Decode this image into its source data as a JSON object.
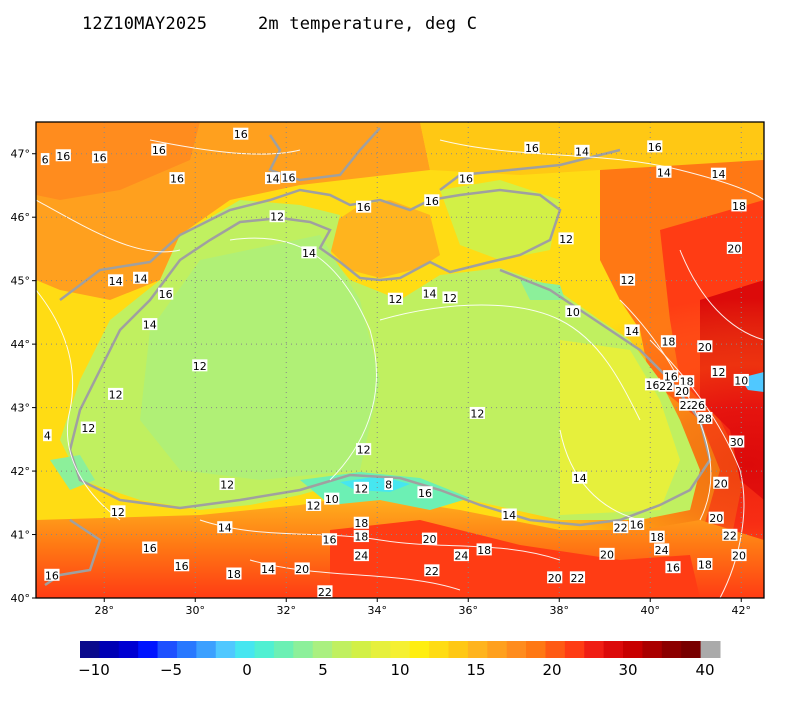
{
  "header": {
    "datetime": "12Z10MAY2025",
    "field_title": "2m temperature, deg C"
  },
  "map": {
    "region": "Black Sea",
    "lon_labels": [
      "28°",
      "30°",
      "32°",
      "34°",
      "36°",
      "38°",
      "40°",
      "42°"
    ],
    "lat_labels": [
      "40°",
      "41°",
      "42°",
      "43°",
      "44°",
      "45°",
      "46°",
      "47°"
    ],
    "grid": "dotted"
  },
  "colorbar": {
    "tick_labels": [
      "−10",
      "−5",
      "0",
      "5",
      "10",
      "15",
      "20",
      "30",
      "40"
    ],
    "colors": [
      "#0a0a8c",
      "#0000b4",
      "#0000d2",
      "#0014ff",
      "#1e50ff",
      "#2878ff",
      "#3ca0ff",
      "#50c8ff",
      "#46e6f0",
      "#50f0d2",
      "#6cf0b4",
      "#8cf09a",
      "#aaf080",
      "#c0f060",
      "#d2f046",
      "#e6f03c",
      "#f5f032",
      "#ffee10",
      "#ffdc14",
      "#ffc814",
      "#ffb41e",
      "#ffa01e",
      "#ff8c1e",
      "#ff7814",
      "#ff5a14",
      "#ff3c14",
      "#f01e14",
      "#dc0a0a",
      "#c80000",
      "#aa0000",
      "#8c0000",
      "#780000",
      "#aaaaaa"
    ]
  },
  "contour_labels": [
    {
      "t": "16",
      "lon": 27.1,
      "lat": 46.96
    },
    {
      "t": "16",
      "lon": 27.9,
      "lat": 46.93
    },
    {
      "t": "16",
      "lon": 29.2,
      "lat": 47.05
    },
    {
      "t": "16",
      "lon": 29.6,
      "lat": 46.6
    },
    {
      "t": "16",
      "lon": 31.0,
      "lat": 47.3
    },
    {
      "t": "14",
      "lon": 31.7,
      "lat": 46.6
    },
    {
      "t": "16",
      "lon": 32.05,
      "lat": 46.62
    },
    {
      "t": "12",
      "lon": 31.8,
      "lat": 46.0
    },
    {
      "t": "16",
      "lon": 33.7,
      "lat": 46.15
    },
    {
      "t": "16",
      "lon": 35.2,
      "lat": 46.25
    },
    {
      "t": "16",
      "lon": 35.95,
      "lat": 46.6
    },
    {
      "t": "16",
      "lon": 37.4,
      "lat": 47.08
    },
    {
      "t": "14",
      "lon": 38.5,
      "lat": 47.03
    },
    {
      "t": "16",
      "lon": 40.1,
      "lat": 47.1
    },
    {
      "t": "14",
      "lon": 40.3,
      "lat": 46.7
    },
    {
      "t": "14",
      "lon": 41.5,
      "lat": 46.67
    },
    {
      "t": "18",
      "lon": 41.95,
      "lat": 46.17
    },
    {
      "t": "20",
      "lon": 41.85,
      "lat": 45.5
    },
    {
      "t": "12",
      "lon": 38.15,
      "lat": 45.65
    },
    {
      "t": "12",
      "lon": 39.5,
      "lat": 45.0
    },
    {
      "t": "14",
      "lon": 32.5,
      "lat": 45.43
    },
    {
      "t": "14",
      "lon": 28.25,
      "lat": 44.99
    },
    {
      "t": "14",
      "lon": 28.8,
      "lat": 45.03
    },
    {
      "t": "16",
      "lon": 29.35,
      "lat": 44.78
    },
    {
      "t": "14",
      "lon": 29.0,
      "lat": 44.3
    },
    {
      "t": "12",
      "lon": 34.4,
      "lat": 44.7
    },
    {
      "t": "14",
      "lon": 35.15,
      "lat": 44.79
    },
    {
      "t": "12",
      "lon": 35.6,
      "lat": 44.72
    },
    {
      "t": "10",
      "lon": 38.3,
      "lat": 44.5
    },
    {
      "t": "14",
      "lon": 39.6,
      "lat": 44.2
    },
    {
      "t": "18",
      "lon": 40.4,
      "lat": 44.03
    },
    {
      "t": "20",
      "lon": 41.2,
      "lat": 43.95
    },
    {
      "t": "12",
      "lon": 30.1,
      "lat": 43.65
    },
    {
      "t": "16",
      "lon": 40.05,
      "lat": 43.35
    },
    {
      "t": "22",
      "lon": 40.35,
      "lat": 43.33
    },
    {
      "t": "16",
      "lon": 40.45,
      "lat": 43.48
    },
    {
      "t": "18",
      "lon": 40.8,
      "lat": 43.4
    },
    {
      "t": "20",
      "lon": 40.7,
      "lat": 43.25
    },
    {
      "t": "12",
      "lon": 41.5,
      "lat": 43.55
    },
    {
      "t": "10",
      "lon": 42.0,
      "lat": 43.42
    },
    {
      "t": "22",
      "lon": 40.8,
      "lat": 43.03
    },
    {
      "t": "26",
      "lon": 41.05,
      "lat": 43.03
    },
    {
      "t": "28",
      "lon": 41.2,
      "lat": 42.82
    },
    {
      "t": "30",
      "lon": 41.9,
      "lat": 42.45
    },
    {
      "t": "12",
      "lon": 28.25,
      "lat": 43.2
    },
    {
      "t": "12",
      "lon": 27.65,
      "lat": 42.67
    },
    {
      "t": "4",
      "lon": 26.75,
      "lat": 42.55
    },
    {
      "t": "12",
      "lon": 36.2,
      "lat": 42.9
    },
    {
      "t": "12",
      "lon": 33.7,
      "lat": 42.33
    },
    {
      "t": "14",
      "lon": 38.45,
      "lat": 41.88
    },
    {
      "t": "12",
      "lon": 30.7,
      "lat": 41.78
    },
    {
      "t": "20",
      "lon": 41.55,
      "lat": 41.8
    },
    {
      "t": "12",
      "lon": 28.3,
      "lat": 41.35
    },
    {
      "t": "12",
      "lon": 32.6,
      "lat": 41.45
    },
    {
      "t": "10",
      "lon": 33.0,
      "lat": 41.55
    },
    {
      "t": "12",
      "lon": 33.65,
      "lat": 41.72
    },
    {
      "t": "8",
      "lon": 34.25,
      "lat": 41.78
    },
    {
      "t": "16",
      "lon": 35.05,
      "lat": 41.65
    },
    {
      "t": "14",
      "lon": 36.9,
      "lat": 41.3
    },
    {
      "t": "20",
      "lon": 41.45,
      "lat": 41.25
    },
    {
      "t": "14",
      "lon": 30.65,
      "lat": 41.1
    },
    {
      "t": "18",
      "lon": 33.65,
      "lat": 41.17
    },
    {
      "t": "18",
      "lon": 33.65,
      "lat": 40.96
    },
    {
      "t": "16",
      "lon": 32.95,
      "lat": 40.91
    },
    {
      "t": "20",
      "lon": 35.15,
      "lat": 40.92
    },
    {
      "t": "22",
      "lon": 39.35,
      "lat": 41.1
    },
    {
      "t": "16",
      "lon": 39.7,
      "lat": 41.15
    },
    {
      "t": "18",
      "lon": 40.15,
      "lat": 40.95
    },
    {
      "t": "22",
      "lon": 41.75,
      "lat": 40.98
    },
    {
      "t": "24",
      "lon": 40.25,
      "lat": 40.75
    },
    {
      "t": "16",
      "lon": 29.0,
      "lat": 40.78
    },
    {
      "t": "24",
      "lon": 33.65,
      "lat": 40.66
    },
    {
      "t": "24",
      "lon": 35.85,
      "lat": 40.66
    },
    {
      "t": "18",
      "lon": 36.35,
      "lat": 40.75
    },
    {
      "t": "20",
      "lon": 39.05,
      "lat": 40.68
    },
    {
      "t": "20",
      "lon": 41.95,
      "lat": 40.66
    },
    {
      "t": "16",
      "lon": 29.7,
      "lat": 40.5
    },
    {
      "t": "18",
      "lon": 30.85,
      "lat": 40.37
    },
    {
      "t": "14",
      "lon": 31.6,
      "lat": 40.45
    },
    {
      "t": "20",
      "lon": 32.35,
      "lat": 40.45
    },
    {
      "t": "22",
      "lon": 35.2,
      "lat": 40.42
    },
    {
      "t": "16",
      "lon": 40.5,
      "lat": 40.47
    },
    {
      "t": "18",
      "lon": 41.2,
      "lat": 40.52
    },
    {
      "t": "20",
      "lon": 37.9,
      "lat": 40.31
    },
    {
      "t": "22",
      "lon": 38.4,
      "lat": 40.31
    },
    {
      "t": "16",
      "lon": 26.85,
      "lat": 40.35
    },
    {
      "t": "22",
      "lon": 32.85,
      "lat": 40.09
    },
    {
      "t": "6",
      "lon": 26.7,
      "lat": 46.9
    }
  ]
}
